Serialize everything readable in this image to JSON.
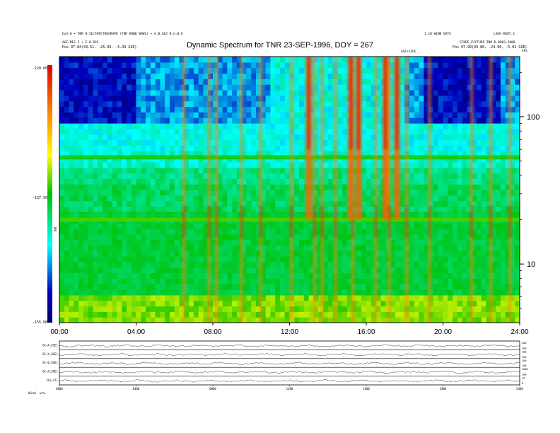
{
  "header": {
    "left_line1": "Ex3.0 • TNR 0.5E/SPECTROGRAPH (TNR BAND BOWL) • A.B.ADJ B.G.B.E",
    "left_line2": "AGC/RES 2 • E:0.025",
    "left_line3": "Pos    97.84(93.51, -25.93, -5.33 GSE)",
    "right_line1": "1.10 WIND DATE",
    "right_line2": "LOGP.ROOT.S",
    "right_line3": "STORE_PICTURE TNR.D.0003.2000",
    "right_line4": "Pos    97.90(93.80, -24.90, -5.01 GSE)",
    "gse_tag": "GSE/SIDE",
    "khz_tag": "kHz"
  },
  "title": "Dynamic Spectrum for TNR 23-SEP-1996, DOY = 267",
  "colorbar": {
    "ticks": [
      "-120.00",
      "-137.50",
      "-155.00"
    ],
    "label": "TNR"
  },
  "footer": {
    "left": "Wind",
    "left2": "wrw"
  },
  "colors": {
    "colorbar_stops": [
      "#e00000",
      "#ff9000",
      "#ffff00",
      "#00c000",
      "#00ffff",
      "#0000c0",
      "#000060"
    ]
  },
  "chart_data": [
    {
      "type": "heatmap",
      "title": "Dynamic Spectrum for TNR 23-SEP-1996, DOY = 267",
      "xlabel": "",
      "ylabel": "kHz",
      "x_ticks": [
        "00:00",
        "04:00",
        "08:00",
        "12:00",
        "16:00",
        "20:00",
        "24:00"
      ],
      "xlim_hours": [
        0,
        24
      ],
      "y_scale": "log",
      "y_ticks": [
        10,
        100
      ],
      "ylim_khz": [
        4,
        256
      ],
      "color_scale_db": [
        -155.0,
        -120.0
      ],
      "features": {
        "emission_bands_khz": [
          {
            "freq": 53,
            "level_db": -137
          },
          {
            "freq": 20,
            "level_db": -136
          }
        ],
        "type3_bursts_hours": [
          6.5,
          7.8,
          8.2,
          9.5,
          10.5,
          12.1,
          13.3,
          13.7,
          14.4,
          15.3,
          16.5,
          17.2,
          18.1,
          19.3,
          21.5,
          22.5,
          23.5
        ],
        "strong_bursts_hours": [
          13.0,
          15.2,
          15.6,
          17.0,
          17.6
        ]
      }
    },
    {
      "type": "line",
      "title": "",
      "panels": [
        "B(+X,GSE)",
        "B(+Y,GSE)",
        "B(+Z,GSE)",
        "B(+X,GSE)",
        "|B|(nT)"
      ],
      "right_tick_pairs": [
        [
          "200",
          "100"
        ],
        [
          "200",
          "100"
        ],
        [
          "200",
          "100"
        ],
        [
          "1000",
          "100"
        ],
        [
          "10",
          "0"
        ]
      ],
      "x_ticks": [
        "0000",
        "0400",
        "0800",
        "1200",
        "1600",
        "2000",
        "2400"
      ],
      "xlim_hours": [
        0,
        24
      ]
    }
  ]
}
